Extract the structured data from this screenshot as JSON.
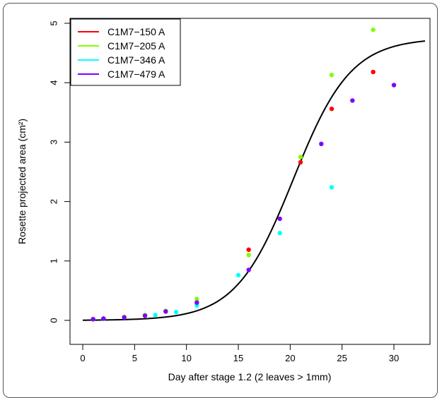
{
  "chart_data": {
    "type": "scatter",
    "xlabel": "Day after stage 1.2 (2 leaves > 1mm)",
    "ylabel": "Rosette projected area (cm²)",
    "xlim": [
      -1.5,
      34.5
    ],
    "ylim": [
      -0.2,
      5.1
    ],
    "x_ticks": [
      0,
      5,
      10,
      15,
      20,
      25,
      30
    ],
    "y_ticks": [
      0,
      1,
      2,
      3,
      4,
      5
    ],
    "grid": false,
    "legend_position": "top-left",
    "series": [
      {
        "name": "C1M7−150 A",
        "color": "#ff0000",
        "points": [
          [
            1,
            0.02
          ],
          [
            2,
            0.03
          ],
          [
            4,
            0.05
          ],
          [
            6,
            0.08
          ],
          [
            8,
            0.15
          ],
          [
            11,
            0.3
          ],
          [
            16,
            1.19
          ],
          [
            21,
            2.66
          ],
          [
            24,
            3.56
          ],
          [
            28,
            4.18
          ]
        ]
      },
      {
        "name": "C1M7−205 A",
        "color": "#80ff00",
        "points": [
          [
            1,
            0.02
          ],
          [
            2,
            0.03
          ],
          [
            4,
            0.06
          ],
          [
            6,
            0.09
          ],
          [
            8,
            0.16
          ],
          [
            11,
            0.36
          ],
          [
            16,
            1.1
          ],
          [
            21,
            2.75
          ],
          [
            24,
            4.13
          ],
          [
            28,
            4.89
          ]
        ]
      },
      {
        "name": "C1M7−346 A",
        "color": "#00ffff",
        "points": [
          [
            1,
            0.02
          ],
          [
            2,
            0.03
          ],
          [
            4,
            0.05
          ],
          [
            7,
            0.09
          ],
          [
            9,
            0.14
          ],
          [
            11,
            0.25
          ],
          [
            15,
            0.76
          ],
          [
            19,
            1.47
          ],
          [
            24,
            2.24
          ]
        ]
      },
      {
        "name": "C1M7−479 A",
        "color": "#8000ff",
        "points": [
          [
            1,
            0.02
          ],
          [
            2,
            0.03
          ],
          [
            4,
            0.05
          ],
          [
            6,
            0.08
          ],
          [
            8,
            0.15
          ],
          [
            11,
            0.3
          ],
          [
            16,
            0.85
          ],
          [
            19,
            1.71
          ],
          [
            23,
            2.97
          ],
          [
            26,
            3.7
          ],
          [
            30,
            3.96
          ]
        ]
      }
    ],
    "fit_curve": {
      "type": "logistic",
      "color": "#000000",
      "x_range": [
        0,
        33
      ],
      "K": 4.75,
      "r": 0.36,
      "x0": 20.3
    }
  }
}
